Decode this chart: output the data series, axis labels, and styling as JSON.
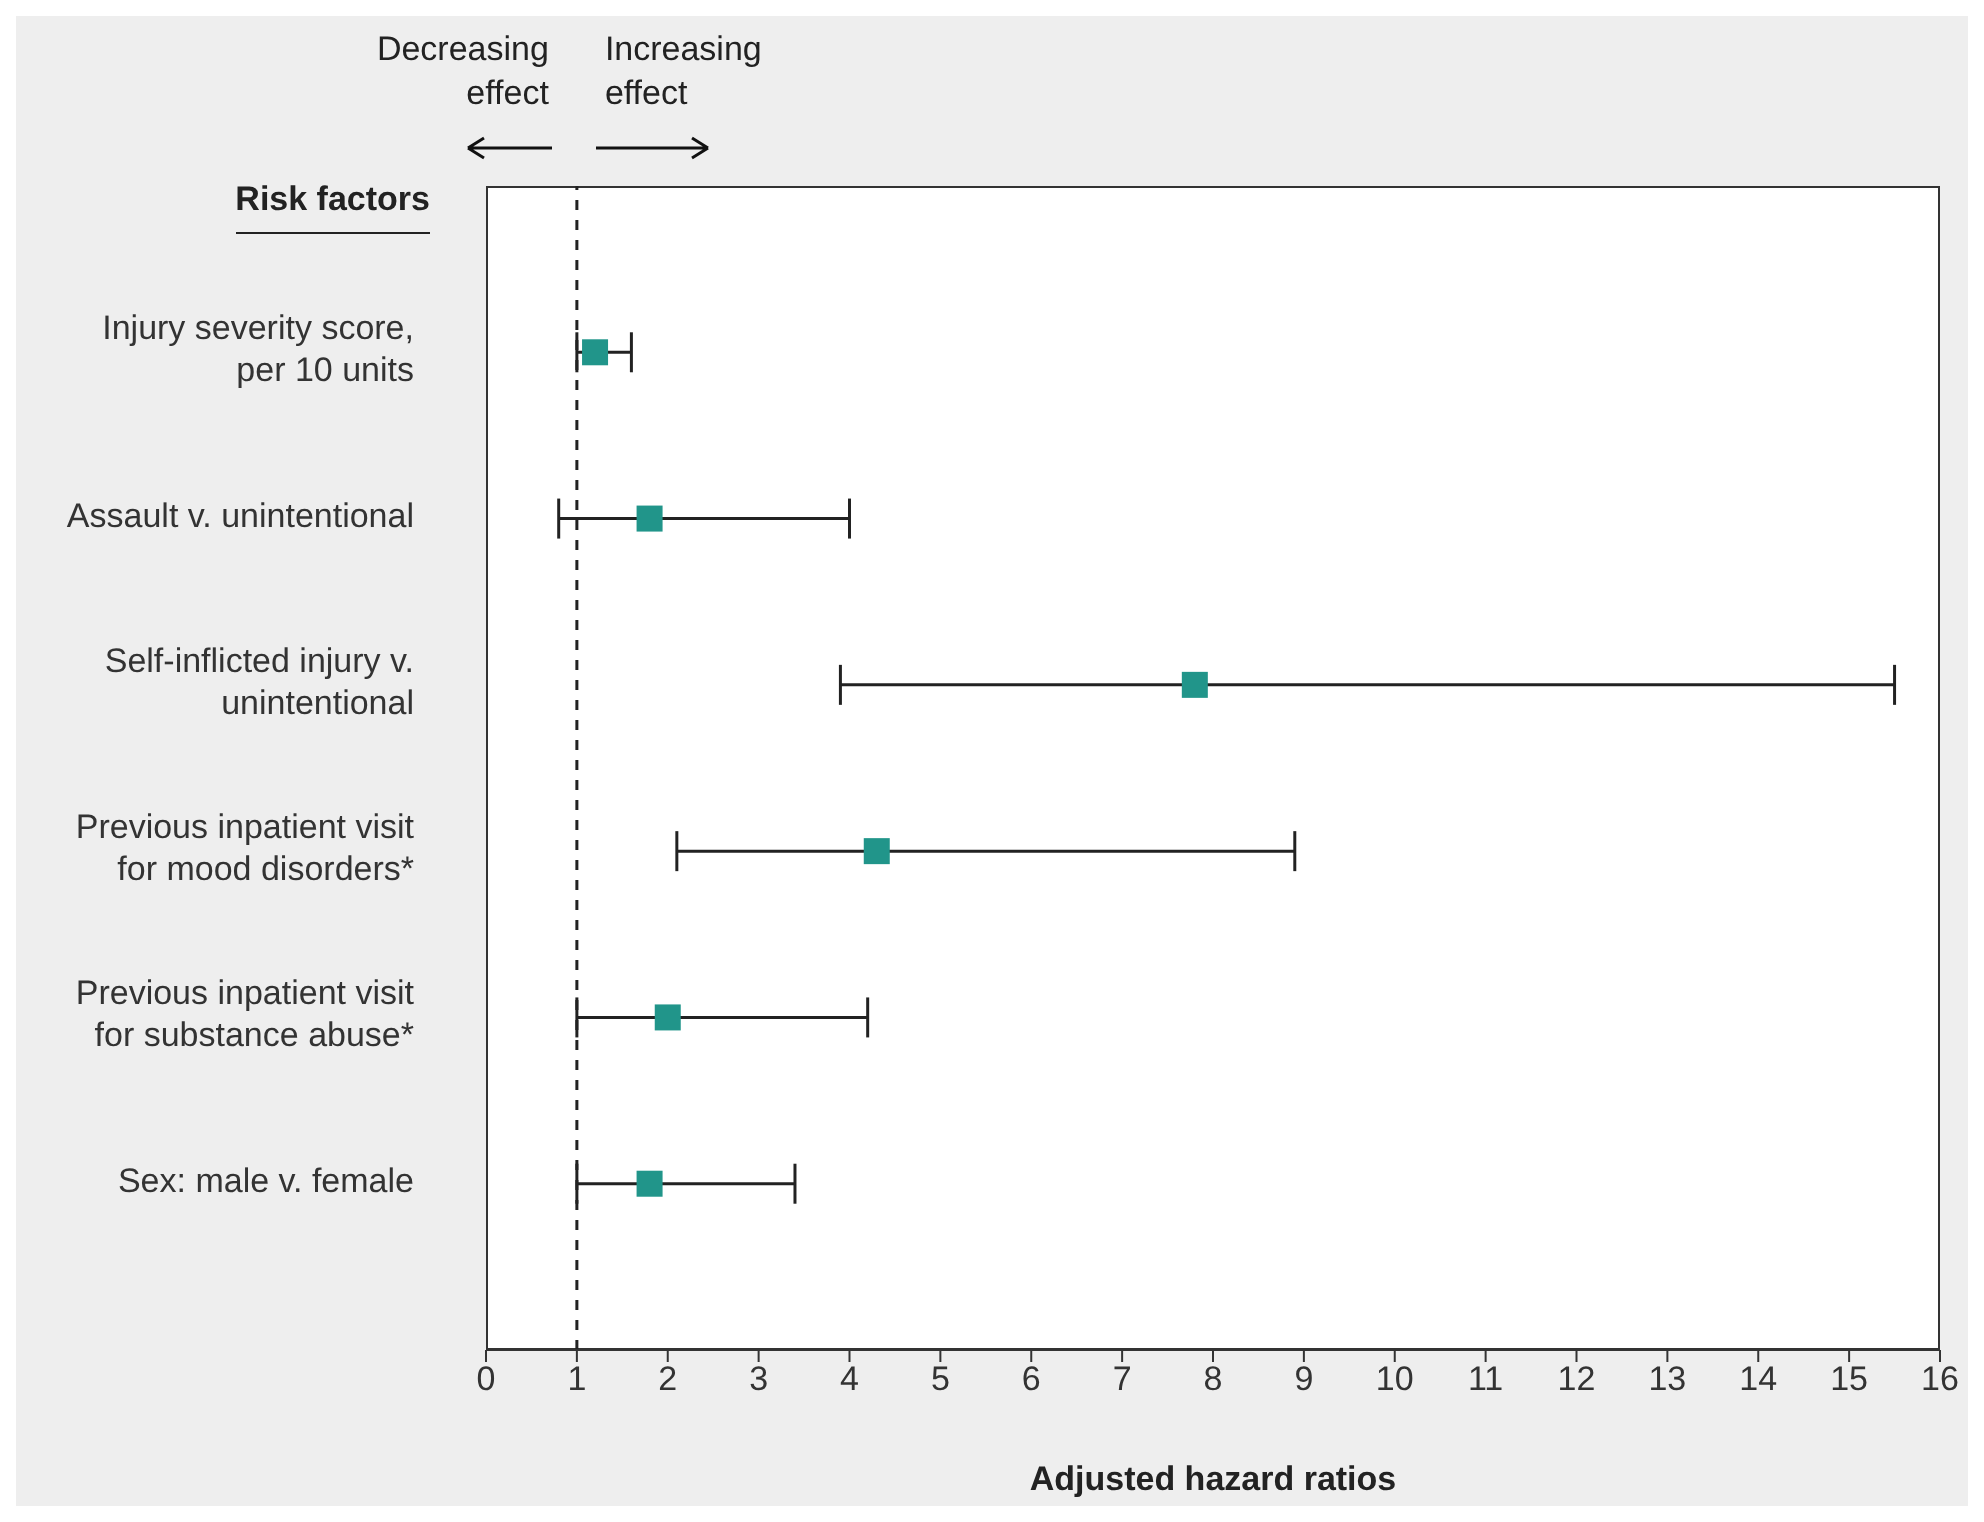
{
  "chart_data": {
    "type": "scatter",
    "orientation": "horizontal",
    "ylabel": "Risk factors",
    "xlabel": "Adjusted hazard ratios",
    "categories": [
      "Injury severity score, per 10 units",
      "Assault v. unintentional",
      "Self-inflicted injury v. unintentional",
      "Previous inpatient visit for mood disorders*",
      "Previous inpatient visit for substance abuse*",
      "Sex: male v. female"
    ],
    "series": [
      {
        "color": "#21958a",
        "values": [
          1.2,
          1.8,
          7.8,
          4.3,
          2.0,
          1.8
        ],
        "errors": [
          [
            1.0,
            1.6
          ],
          [
            0.8,
            4.0
          ],
          [
            3.9,
            15.5
          ],
          [
            2.1,
            8.9
          ],
          [
            1.0,
            4.2
          ],
          [
            1.0,
            3.4
          ]
        ]
      }
    ],
    "xlim": [
      0,
      16
    ],
    "xticks": [
      0,
      1,
      2,
      3,
      4,
      5,
      6,
      7,
      8,
      9,
      10,
      11,
      12,
      13,
      14,
      15,
      16
    ],
    "ref_lines": [
      {
        "axis": "x",
        "value": 1,
        "color": "#222222",
        "line_style": "dashed"
      }
    ],
    "annotations": [
      "Decreasing effect",
      "Increasing effect"
    ],
    "marker": "square"
  }
}
